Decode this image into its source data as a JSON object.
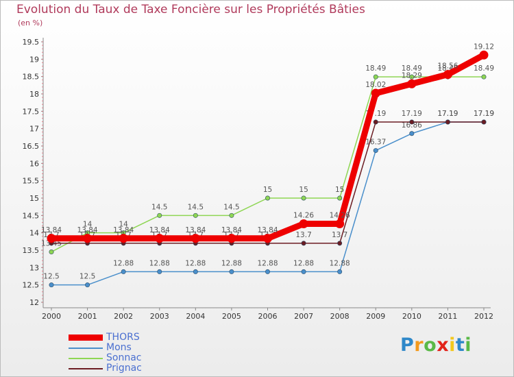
{
  "title": "Evolution du Taux de Taxe Foncière sur les Propriétés Bâties",
  "unit": "(en %)",
  "brand": "Proxiti",
  "chart_data": {
    "type": "line",
    "x": [
      "2000",
      "2001",
      "2002",
      "2003",
      "2004",
      "2005",
      "2006",
      "2007",
      "2008",
      "2009",
      "2010",
      "2011",
      "2012"
    ],
    "yticks": [
      "12",
      "12.5",
      "13",
      "13.5",
      "14",
      "14.5",
      "15",
      "15.5",
      "16",
      "16.5",
      "17",
      "17.5",
      "18",
      "18.5",
      "19",
      "19.5"
    ],
    "ylim": [
      12,
      19.5
    ],
    "grid": false,
    "series": [
      {
        "name": "Mons",
        "color": "#4a8fcb",
        "values": [
          12.5,
          12.5,
          12.88,
          12.88,
          12.88,
          12.88,
          12.88,
          12.88,
          12.88,
          16.37,
          16.86,
          17.19,
          17.19
        ],
        "labels": [
          "12.5",
          "12.5",
          "12.88",
          "12.88",
          "12.88",
          "12.88",
          "12.88",
          "12.88",
          "12.88",
          "16.37",
          "16.86",
          "17.19",
          "17.19"
        ]
      },
      {
        "name": "Sonnac",
        "color": "#8ed653",
        "values": [
          13.45,
          14,
          14,
          14.5,
          14.5,
          14.5,
          15,
          15,
          15,
          18.49,
          18.49,
          18.49,
          18.49
        ],
        "labels": [
          "13.45",
          "14",
          "14",
          "14.5",
          "14.5",
          "14.5",
          "15",
          "15",
          "15",
          "18.49",
          "18.49",
          "18.49",
          "18.49"
        ]
      },
      {
        "name": "Prignac",
        "color": "#6b1c22",
        "values": [
          13.7,
          13.7,
          13.7,
          13.7,
          13.7,
          13.7,
          13.7,
          13.7,
          13.7,
          17.19,
          17.19,
          17.19,
          17.19
        ],
        "labels": [
          "13.7",
          "13.7",
          "13.7",
          "13.7",
          "13.7",
          "13.7",
          "13.7",
          "13.7",
          "13.7",
          "17.19",
          "17.19",
          "17.19",
          "17.19"
        ]
      },
      {
        "name": "THORS",
        "color": "#ee0000",
        "values": [
          13.84,
          13.84,
          13.84,
          13.84,
          13.84,
          13.84,
          13.84,
          14.26,
          14.26,
          18.02,
          18.29,
          18.56,
          19.12
        ],
        "labels": [
          "13.84",
          "13.84",
          "13.84",
          "13.84",
          "13.84",
          "13.84",
          "13.84",
          "14.26",
          "14.26",
          "18.02",
          "18.29",
          "18.56",
          "19.12"
        ]
      }
    ],
    "legend": [
      "THORS",
      "Mons",
      "Sonnac",
      "Prignac"
    ]
  }
}
